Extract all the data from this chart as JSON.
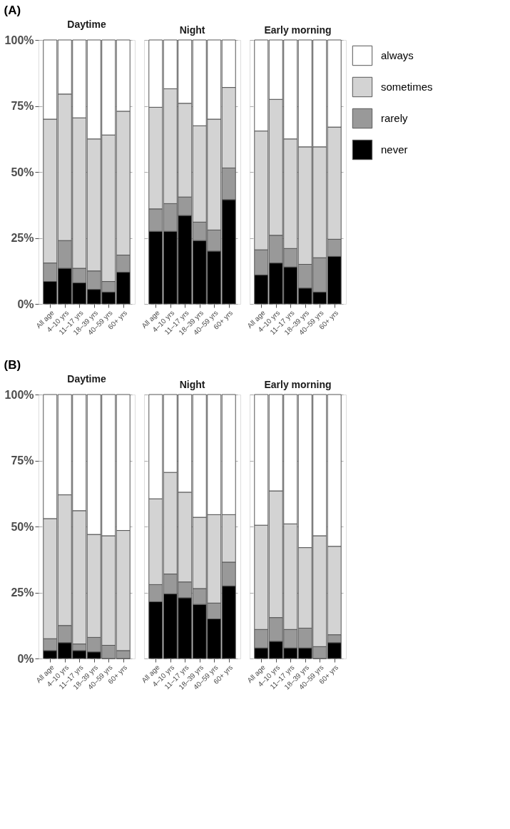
{
  "chart_data": [
    {
      "type": "bar",
      "stacked": true,
      "title": "Daytime",
      "annotations": [
        "(A)"
      ],
      "categories": [
        "All age",
        "4–10 yrs",
        "11–17 yrs",
        "18–39 yrs",
        "40–59 yrs",
        "60+ yrs"
      ],
      "ylim": [
        0,
        100
      ],
      "yticks": [
        {
          "value": 0,
          "label": "0%"
        },
        {
          "value": 25,
          "label": "25%"
        },
        {
          "value": 50,
          "label": "50%"
        },
        {
          "value": 75,
          "label": "75%"
        },
        {
          "value": 100,
          "label": "100%"
        }
      ],
      "grid": "y",
      "legend": "right",
      "series": [
        {
          "name": "never",
          "color": "#000000",
          "values": [
            8.5,
            13.5,
            8,
            5.5,
            4.5,
            12
          ]
        },
        {
          "name": "rarely",
          "color": "#999999",
          "values": [
            7,
            10.5,
            5.5,
            7,
            4,
            6.5
          ]
        },
        {
          "name": "sometimes",
          "color": "#d3d3d3",
          "values": [
            54.5,
            55.5,
            57,
            50,
            55.5,
            54.5
          ]
        },
        {
          "name": "always",
          "color": "#ffffff",
          "values": [
            30,
            20.5,
            29.5,
            37.5,
            36,
            27
          ]
        }
      ]
    },
    {
      "type": "bar",
      "stacked": true,
      "title": "Night",
      "categories": [
        "All age",
        "4–10 yrs",
        "11–17 yrs",
        "18–39 yrs",
        "40–59 yrs",
        "60+ yrs"
      ],
      "ylim": [
        0,
        100
      ],
      "grid": "y",
      "legend": "right",
      "tick_labels": "x",
      "series": [
        {
          "name": "never",
          "color": "#000000",
          "values": [
            27.5,
            27.5,
            33.5,
            24,
            20,
            39.5
          ]
        },
        {
          "name": "rarely",
          "color": "#999999",
          "values": [
            8.5,
            10.5,
            7,
            7,
            8,
            12
          ]
        },
        {
          "name": "sometimes",
          "color": "#d3d3d3",
          "values": [
            38.5,
            43.5,
            35.5,
            36.5,
            42,
            30.5
          ]
        },
        {
          "name": "always",
          "color": "#ffffff",
          "values": [
            25.5,
            18.5,
            24,
            32.5,
            30,
            18
          ]
        }
      ]
    },
    {
      "type": "bar",
      "stacked": true,
      "title": "Early morning",
      "categories": [
        "All age",
        "4–10 yrs",
        "11–17 yrs",
        "18–39 yrs",
        "40–59 yrs",
        "60+ yrs"
      ],
      "ylim": [
        0,
        100
      ],
      "grid": "y",
      "legend": "right",
      "tick_labels": "x",
      "series": [
        {
          "name": "never",
          "color": "#000000",
          "values": [
            11,
            15.5,
            14,
            6,
            4.5,
            18
          ]
        },
        {
          "name": "rarely",
          "color": "#999999",
          "values": [
            9.5,
            10.5,
            7,
            9,
            13,
            6.5
          ]
        },
        {
          "name": "sometimes",
          "color": "#d3d3d3",
          "values": [
            45,
            51.5,
            41.5,
            44.5,
            42,
            42.5
          ]
        },
        {
          "name": "always",
          "color": "#ffffff",
          "values": [
            34.5,
            22.5,
            37.5,
            40.5,
            40.5,
            33
          ]
        }
      ]
    },
    {
      "type": "bar",
      "stacked": true,
      "title": "Daytime",
      "annotations": [
        "(B)"
      ],
      "categories": [
        "All age",
        "4–10 yrs",
        "11–17 yrs",
        "18–39 yrs",
        "40–59 yrs",
        "60+ yrs"
      ],
      "ylim": [
        0,
        100
      ],
      "yticks": [
        {
          "value": 0,
          "label": "0%"
        },
        {
          "value": 25,
          "label": "25%"
        },
        {
          "value": 50,
          "label": "50%"
        },
        {
          "value": 75,
          "label": "75%"
        },
        {
          "value": 100,
          "label": "100%"
        }
      ],
      "grid": "y",
      "legend": "right",
      "series": [
        {
          "name": "never",
          "color": "#000000",
          "values": [
            3,
            6,
            3,
            2.5,
            0,
            0
          ]
        },
        {
          "name": "rarely",
          "color": "#999999",
          "values": [
            4.5,
            6.5,
            2.5,
            5.5,
            5,
            3
          ]
        },
        {
          "name": "sometimes",
          "color": "#d3d3d3",
          "values": [
            45.5,
            49.5,
            50.5,
            39,
            41.5,
            45.5
          ]
        },
        {
          "name": "always",
          "color": "#ffffff",
          "values": [
            47,
            38,
            44,
            53,
            53.5,
            51.5
          ]
        }
      ]
    },
    {
      "type": "bar",
      "stacked": true,
      "title": "Night",
      "categories": [
        "All age",
        "4–10 yrs",
        "11–17 yrs",
        "18–39 yrs",
        "40–59 yrs",
        "60+ yrs"
      ],
      "ylim": [
        0,
        100
      ],
      "grid": "y",
      "legend": "right",
      "tick_labels": "x",
      "series": [
        {
          "name": "never",
          "color": "#000000",
          "values": [
            21.5,
            24.5,
            23,
            20.5,
            15,
            27.5
          ]
        },
        {
          "name": "rarely",
          "color": "#999999",
          "values": [
            6.5,
            7.5,
            6,
            6,
            6,
            9
          ]
        },
        {
          "name": "sometimes",
          "color": "#d3d3d3",
          "values": [
            32.5,
            38.5,
            34,
            27,
            33.5,
            18
          ]
        },
        {
          "name": "always",
          "color": "#ffffff",
          "values": [
            39.5,
            29.5,
            37,
            46.5,
            45.5,
            45.5
          ]
        }
      ]
    },
    {
      "type": "bar",
      "stacked": true,
      "title": "Early morning",
      "categories": [
        "All age",
        "4–10 yrs",
        "11–17 yrs",
        "18–39 yrs",
        "40–59 yrs",
        "60+ yrs"
      ],
      "ylim": [
        0,
        100
      ],
      "grid": "y",
      "legend": "right",
      "tick_labels": "x",
      "series": [
        {
          "name": "never",
          "color": "#000000",
          "values": [
            4,
            6.5,
            4,
            4,
            0,
            6
          ]
        },
        {
          "name": "rarely",
          "color": "#999999",
          "values": [
            7,
            9,
            7,
            7.5,
            4.5,
            3
          ]
        },
        {
          "name": "sometimes",
          "color": "#d3d3d3",
          "values": [
            39.5,
            48,
            40,
            30.5,
            42,
            33.5
          ]
        },
        {
          "name": "always",
          "color": "#ffffff",
          "values": [
            49.5,
            36.5,
            49,
            58,
            53.5,
            57.5
          ]
        }
      ]
    }
  ]
}
